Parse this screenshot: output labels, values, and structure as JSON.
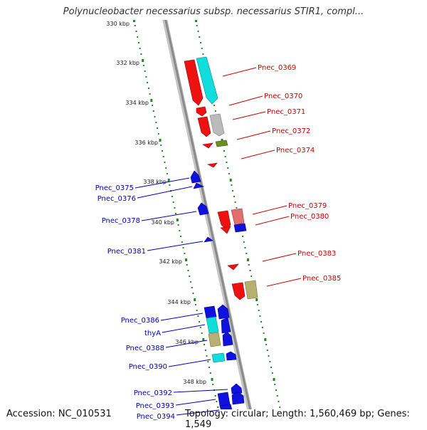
{
  "title": "Polynucleobacter necessarius subsp. necessarius STIR1, compl...",
  "accession": "Accession: NC_010531",
  "footer_info": "Topology: circular; Length: 1,560,469 bp; Genes: 1,549",
  "kbp_labels": [
    "330 kbp",
    "332 kbp",
    "334 kbp",
    "336 kbp",
    "338 kbp",
    "340 kbp",
    "342 kbp",
    "344 kbp",
    "346 kbp",
    "348 kbp"
  ],
  "gene_labels_right": [
    "Pnec_0369",
    "Pnec_0370",
    "Pnec_0371",
    "Pnec_0372",
    "Pnec_0374",
    "Pnec_0379",
    "Pnec_0380",
    "Pnec_0383",
    "Pnec_0385"
  ],
  "gene_labels_left": [
    "Pnec_0375",
    "Pnec_0376",
    "Pnec_0378",
    "Pnec_0381",
    "Pnec_0386",
    "thyA",
    "Pnec_0388",
    "Pnec_0390",
    "Pnec_0392",
    "Pnec_0393",
    "Pnec_0394"
  ],
  "colors": {
    "forward_gene": "#ee1111",
    "reverse_gene": "#1111dd",
    "backbone": "#8a8a8a",
    "tick": "#228822",
    "right_label": "#cc0000",
    "left_label": "#0000bb",
    "cyan_feature": "#11dddd",
    "grey_feature": "#bbbbbb",
    "olive_feature": "#b8b070",
    "pink_feature": "#e07070",
    "green_feature": "#6b8e23"
  }
}
